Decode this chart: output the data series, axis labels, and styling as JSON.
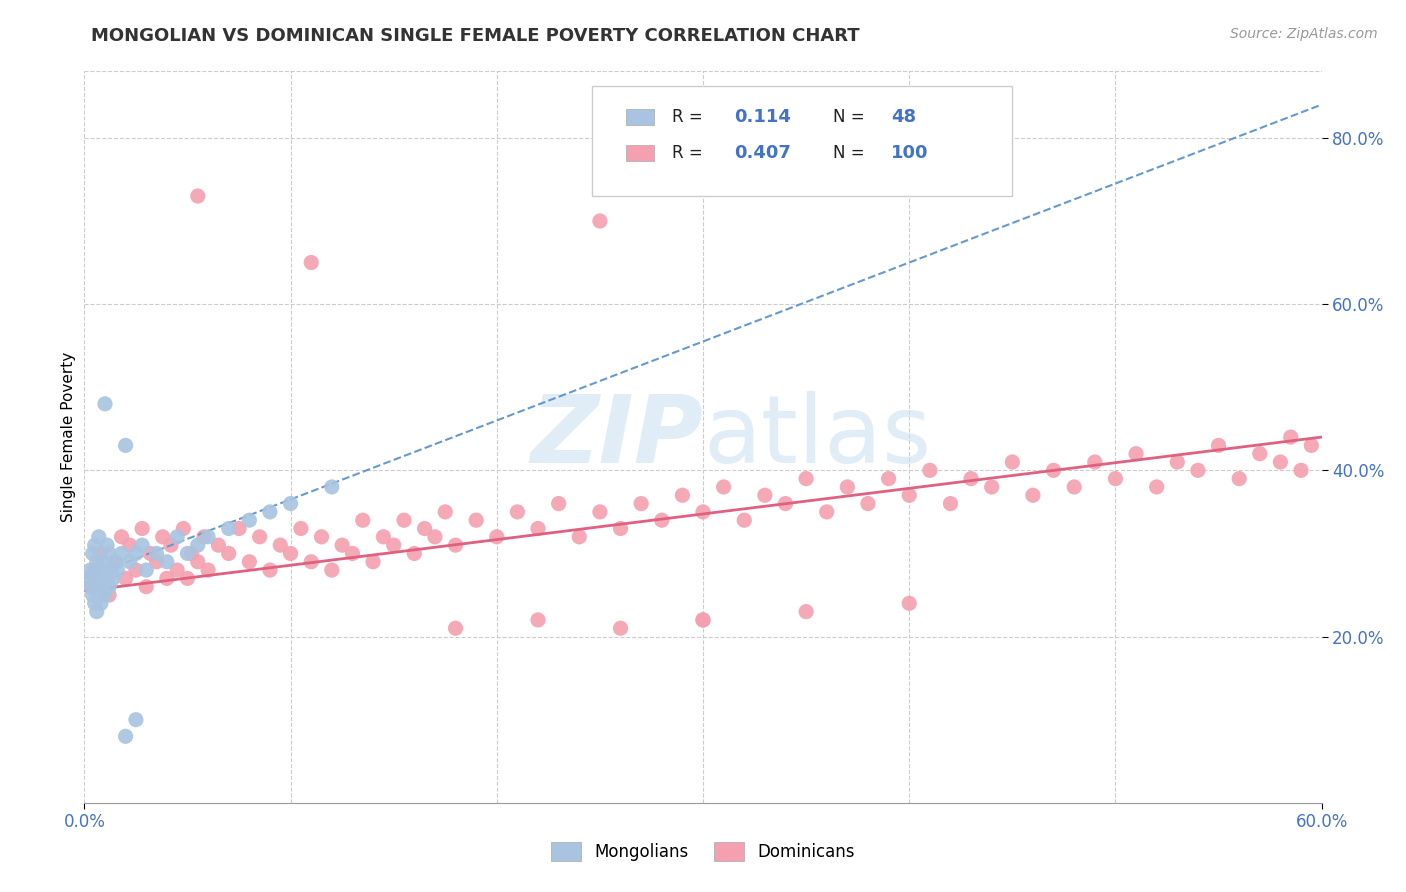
{
  "title": "MONGOLIAN VS DOMINICAN SINGLE FEMALE POVERTY CORRELATION CHART",
  "source": "Source: ZipAtlas.com",
  "ylabel": "Single Female Poverty",
  "xlim": [
    0.0,
    0.6
  ],
  "ylim": [
    0.0,
    0.88
  ],
  "xtick_vals": [
    0.0,
    0.6
  ],
  "ytick_vals": [
    0.2,
    0.4,
    0.6,
    0.8
  ],
  "minor_xtick_vals": [
    0.1,
    0.2,
    0.3,
    0.4,
    0.5
  ],
  "mongolian_color": "#a8c4e0",
  "dominican_color": "#f4a0b0",
  "trendline_mongolian_color": "#6699cc",
  "trendline_dominican_color": "#e06080",
  "background_color": "#ffffff",
  "R_mongolian": 0.114,
  "N_mongolian": 48,
  "R_dominican": 0.407,
  "N_dominican": 100,
  "legend_label_mongolian": "Mongolians",
  "legend_label_dominican": "Dominicans",
  "tick_color": "#4472c4",
  "grid_color": "#cccccc",
  "title_color": "#333333",
  "source_color": "#999999"
}
